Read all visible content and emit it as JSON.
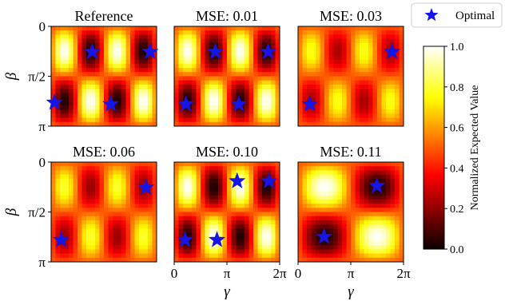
{
  "legend": {
    "label": "Optimal",
    "marker_color": "#1515e6",
    "placement": "top-right"
  },
  "colorbar": {
    "label": "Normalized Expected Value",
    "colormap": "hot",
    "range": [
      0.0,
      1.0
    ],
    "ticks": [
      "0.0",
      "0.2",
      "0.4",
      "0.6",
      "0.8",
      "1.0"
    ]
  },
  "chart_data": [
    {
      "type": "heatmap",
      "title": "Reference",
      "xlabel": "",
      "ylabel": "β",
      "x_ticks": [],
      "y_ticks": [
        "0",
        "π/2",
        "π"
      ],
      "x_range": [
        0,
        6.2832
      ],
      "y_range": [
        0,
        3.1416
      ],
      "pattern": {
        "kx": 2,
        "ky": 1
      },
      "optimal_points": [
        [
          0.2,
          2.4
        ],
        [
          2.45,
          0.8
        ],
        [
          3.55,
          2.45
        ],
        [
          5.9,
          0.8
        ]
      ]
    },
    {
      "type": "heatmap",
      "title": "MSE: 0.01",
      "xlabel": "",
      "ylabel": "",
      "x_ticks": [],
      "y_ticks": [],
      "x_range": [
        0,
        6.2832
      ],
      "y_range": [
        0,
        3.1416
      ],
      "pattern": {
        "kx": 2,
        "ky": 1
      },
      "optimal_points": [
        [
          0.7,
          2.45
        ],
        [
          2.45,
          0.8
        ],
        [
          3.85,
          2.45
        ],
        [
          5.6,
          0.8
        ]
      ]
    },
    {
      "type": "heatmap",
      "title": "MSE: 0.03",
      "xlabel": "",
      "ylabel": "",
      "x_ticks": [],
      "y_ticks": [],
      "x_range": [
        0,
        6.2832
      ],
      "y_range": [
        0,
        3.1416
      ],
      "pattern": {
        "kx": 2,
        "ky": 1,
        "contrast": 0.55
      },
      "optimal_points": [
        [
          0.7,
          2.45
        ],
        [
          5.6,
          0.8
        ]
      ]
    },
    {
      "type": "heatmap",
      "title": "MSE: 0.06",
      "xlabel": "",
      "ylabel": "β",
      "x_ticks": [],
      "y_ticks": [
        "0",
        "π/2",
        "π"
      ],
      "x_range": [
        0,
        6.2832
      ],
      "y_range": [
        0,
        3.1416
      ],
      "pattern": {
        "kx": 2,
        "ky": 1,
        "contrast": 0.6
      },
      "optimal_points": [
        [
          0.6,
          2.45
        ],
        [
          5.65,
          0.8
        ]
      ]
    },
    {
      "type": "heatmap",
      "title": "MSE: 0.10",
      "xlabel": "γ",
      "ylabel": "",
      "x_ticks": [
        "0",
        "π",
        "2π"
      ],
      "y_ticks": [],
      "x_range": [
        0,
        6.2832
      ],
      "y_range": [
        0,
        3.1416
      ],
      "pattern": {
        "kx": 2,
        "ky": 1
      },
      "optimal_points": [
        [
          0.65,
          2.45
        ],
        [
          2.55,
          2.45
        ],
        [
          3.75,
          0.6
        ],
        [
          5.65,
          0.6
        ]
      ]
    },
    {
      "type": "heatmap",
      "title": "MSE: 0.11",
      "xlabel": "γ",
      "ylabel": "",
      "x_ticks": [
        "0",
        "π",
        "2π"
      ],
      "y_ticks": [],
      "x_range": [
        0,
        6.2832
      ],
      "y_range": [
        0,
        3.1416
      ],
      "pattern": {
        "kx": 1,
        "ky": 1
      },
      "optimal_points": [
        [
          1.55,
          2.35
        ],
        [
          4.7,
          0.75
        ]
      ]
    }
  ]
}
